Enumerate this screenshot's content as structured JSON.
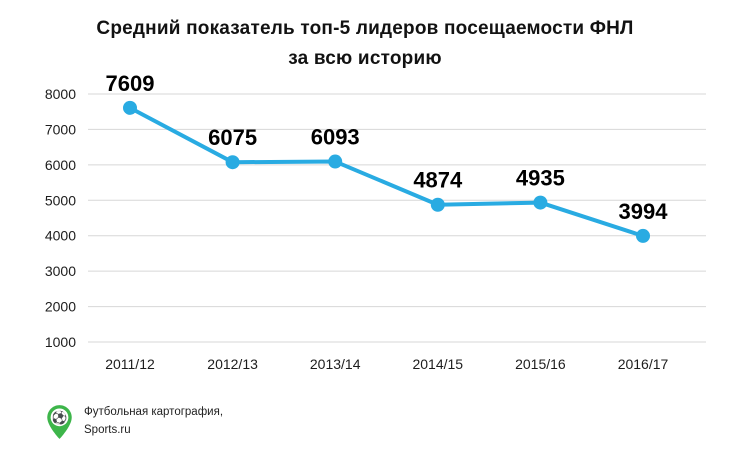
{
  "title": {
    "line1": "Средний показатель топ-5 лидеров посещаемости ФНЛ",
    "line2": "за всю историю"
  },
  "chart_data": {
    "type": "line",
    "title": "Средний показатель топ-5 лидеров посещаемости ФНЛ за всю историю",
    "categories": [
      "2011/12",
      "2012/13",
      "2013/14",
      "2014/15",
      "2015/16",
      "2016/17"
    ],
    "values": [
      7609,
      6075,
      6093,
      4874,
      4935,
      3994
    ],
    "data_labels": [
      "7609",
      "6075",
      "6093",
      "4874",
      "4935",
      "3994"
    ],
    "xlabel": "",
    "ylabel": "",
    "ylim": [
      1000,
      8000
    ],
    "yticks": [
      8000,
      7000,
      6000,
      5000,
      4000,
      3000,
      2000,
      1000
    ],
    "grid": true,
    "legend": "none",
    "line_color": "#29abe2",
    "marker": "circle"
  },
  "footer": {
    "credit_line1": "Футбольная картография,",
    "credit_line2": "Sports.ru",
    "pin_color": "#3db54a",
    "ball_icon": "⚽"
  },
  "colors": {
    "line": "#29abe2",
    "grid": "#d7d7d7",
    "tick_text": "#1d1d1d",
    "value_label": "#000000",
    "title_text": "#121212"
  }
}
